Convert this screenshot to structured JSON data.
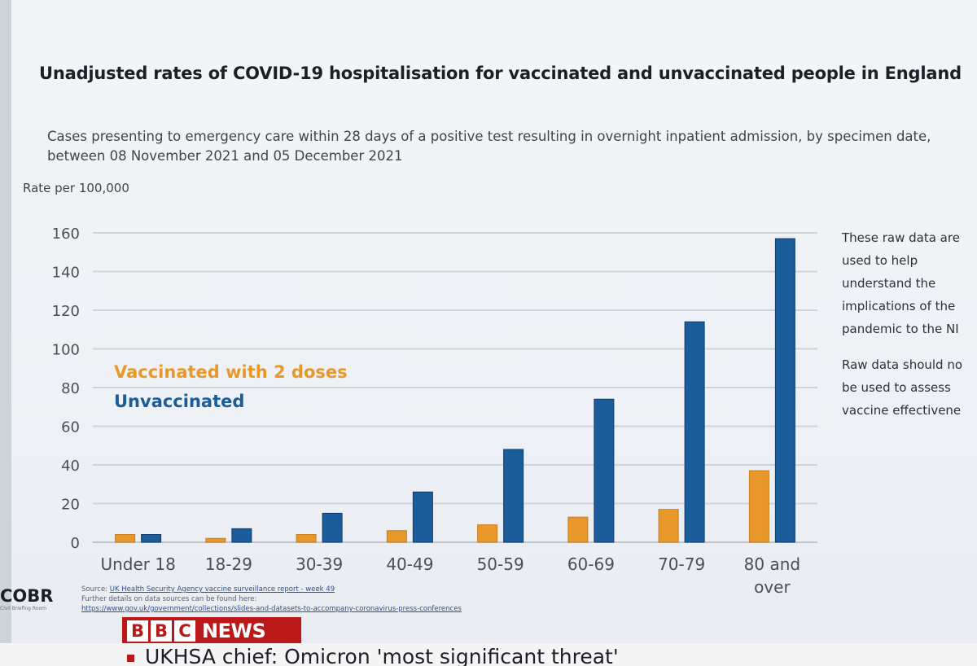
{
  "title": "Unadjusted rates of COVID-19 hospitalisation for vaccinated and unvaccinated people in England",
  "subtitle": "Cases presenting to emergency care within 28 days of a positive test resulting in overnight inpatient admission, by specimen date, between 08 November 2021 and 05 December 2021",
  "side_note": {
    "line1": "These raw data are",
    "line2": "used to help",
    "line3": "understand the",
    "line4": "implications of the",
    "line5": "pandemic to the NI",
    "line6": "Raw data should no",
    "line7": "be used to assess",
    "line8": "vaccine effectivene"
  },
  "source": {
    "prefix": "Source:",
    "link": "UK Health Security Agency vaccine surveillance report - week 49",
    "line2": "Further details on data sources can be found here:",
    "line3": "https://www.gov.uk/government/collections/slides-and-datasets-to-accompany-coronavirus-press-conferences"
  },
  "branding": {
    "cobr": "COBR",
    "cobr_sub": "Civil Briefing Room",
    "bbc_b1": "B",
    "bbc_b2": "B",
    "bbc_c": "C",
    "news": "NEWS",
    "ticker": "UKHSA chief: Omicron 'most significant threat'"
  },
  "colors": {
    "vaccinated": "#e8982a",
    "unvaccinated": "#1a5d9a",
    "bbc_red": "#bb1919"
  },
  "chart_data": {
    "type": "bar",
    "title": "Unadjusted rates of COVID-19 hospitalisation for vaccinated and unvaccinated people in England",
    "ylabel": "Rate per 100,000",
    "xlabel": "",
    "ylim": [
      0,
      160
    ],
    "yticks": [
      0,
      20,
      40,
      60,
      80,
      100,
      120,
      140,
      160
    ],
    "grid": true,
    "legend_position": "left",
    "categories": [
      "Under 18",
      "18-29",
      "30-39",
      "40-49",
      "50-59",
      "60-69",
      "70-79",
      "80 and over"
    ],
    "category_lines": [
      [
        "Under 18"
      ],
      [
        "18-29"
      ],
      [
        "30-39"
      ],
      [
        "40-49"
      ],
      [
        "50-59"
      ],
      [
        "60-69"
      ],
      [
        "70-79"
      ],
      [
        "80 and",
        "over"
      ]
    ],
    "series": [
      {
        "name": "Vaccinated with 2 doses",
        "values": [
          4,
          2,
          4,
          6,
          9,
          13,
          17,
          37
        ]
      },
      {
        "name": "Unvaccinated",
        "values": [
          4,
          7,
          15,
          26,
          48,
          74,
          114,
          157
        ]
      }
    ]
  }
}
